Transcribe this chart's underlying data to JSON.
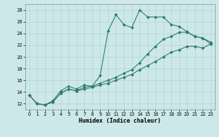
{
  "xlabel": "Humidex (Indice chaleur)",
  "bg_color": "#cce8e8",
  "grid_color": "#b8d4d4",
  "line_color": "#2d7a6e",
  "xlim": [
    -0.5,
    23.5
  ],
  "ylim": [
    11.0,
    29.0
  ],
  "xticks": [
    0,
    1,
    2,
    3,
    4,
    5,
    6,
    7,
    8,
    9,
    10,
    11,
    12,
    13,
    14,
    15,
    16,
    17,
    18,
    19,
    20,
    21,
    22,
    23
  ],
  "yticks": [
    12,
    14,
    16,
    18,
    20,
    22,
    24,
    26,
    28
  ],
  "series1_x": [
    0,
    1,
    2,
    3,
    4,
    5,
    6,
    7,
    8,
    9,
    10,
    11,
    12,
    13,
    14,
    15,
    16,
    17,
    18,
    19,
    20,
    21,
    22,
    23
  ],
  "series1_y": [
    13.5,
    12.0,
    11.8,
    12.5,
    14.2,
    15.0,
    14.5,
    15.2,
    15.0,
    16.8,
    24.4,
    27.2,
    25.5,
    25.0,
    28.0,
    26.8,
    26.8,
    26.8,
    25.5,
    25.2,
    24.3,
    23.5,
    23.2,
    22.5
  ],
  "series2_x": [
    0,
    1,
    2,
    3,
    4,
    5,
    6,
    7,
    8,
    9,
    10,
    11,
    12,
    13,
    14,
    15,
    16,
    17,
    18,
    19,
    20,
    21,
    22,
    23
  ],
  "series2_y": [
    13.5,
    12.0,
    11.8,
    12.3,
    13.8,
    14.5,
    14.2,
    14.5,
    14.8,
    15.2,
    15.5,
    16.0,
    16.5,
    17.0,
    17.8,
    18.5,
    19.2,
    20.0,
    20.8,
    21.2,
    21.8,
    21.8,
    21.5,
    22.2
  ],
  "series3_x": [
    0,
    1,
    2,
    3,
    4,
    5,
    6,
    7,
    8,
    9,
    10,
    11,
    12,
    13,
    14,
    15,
    16,
    17,
    18,
    19,
    20,
    21,
    22,
    23
  ],
  "series3_y": [
    13.5,
    12.0,
    11.8,
    12.3,
    13.8,
    14.5,
    14.2,
    14.8,
    15.0,
    15.5,
    16.0,
    16.5,
    17.2,
    17.8,
    19.0,
    20.5,
    21.8,
    23.0,
    23.5,
    24.2,
    24.2,
    23.5,
    23.2,
    22.2
  ]
}
